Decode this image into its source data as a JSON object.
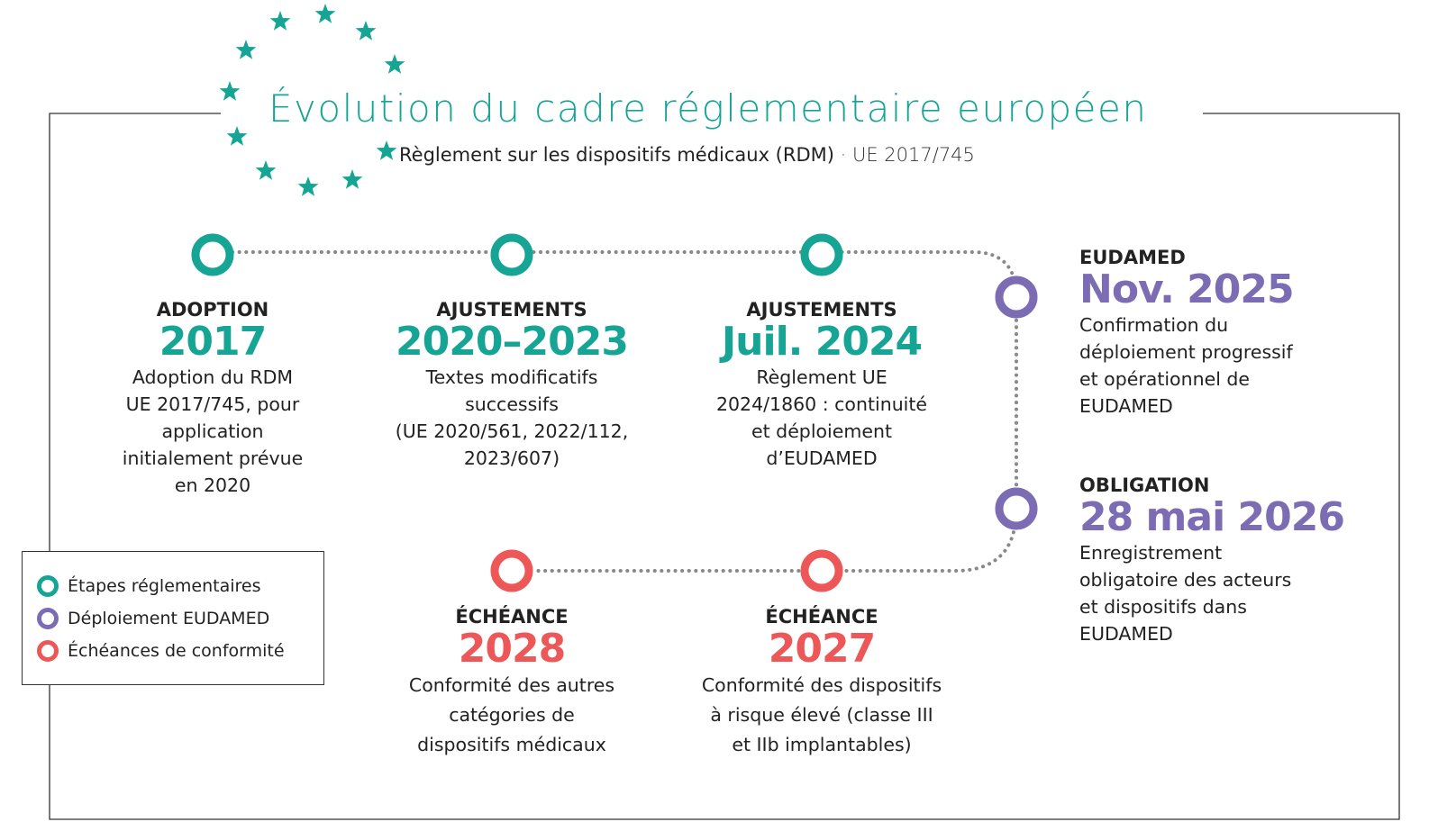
{
  "header": {
    "title": "Évolution du cadre réglementaire européen",
    "subtitle": "Règlement sur les dispositifs médicaux (RDM)",
    "subtitle_code": "· UE 2017/745"
  },
  "colors": {
    "regulatory": "#16a595",
    "eudamed": "#7b6cb4",
    "compliance": "#ee5757",
    "connector": "#888888"
  },
  "milestones": [
    {
      "label": "ADOPTION",
      "date": "2017",
      "description": [
        "Adoption du RDM",
        "UE 2017/745, pour",
        "application",
        "initialement prévue",
        "en 2020"
      ],
      "category": "regulatory"
    },
    {
      "label": "AJUSTEMENTS",
      "date": "2020–2023",
      "description": [
        "Textes modificatifs",
        "successifs",
        "(UE 2020/561, 2022/112,",
        "2023/607)"
      ],
      "category": "regulatory"
    },
    {
      "label": "AJUSTEMENTS",
      "date": "Juil. 2024",
      "description": [
        "Règlement UE",
        "2024/1860 : continuité",
        "et déploiement",
        "d’EUDAMED"
      ],
      "category": "regulatory"
    },
    {
      "label": "EUDAMED",
      "date": "Nov. 2025",
      "description": [
        "Confirmation du",
        "déploiement progressif",
        "et opérationnel de",
        "EUDAMED"
      ],
      "category": "eudamed"
    },
    {
      "label": "OBLIGATION",
      "date": "28 mai 2026",
      "description": [
        "Enregistrement",
        "obligatoire des acteurs",
        "et dispositifs dans",
        "EUDAMED"
      ],
      "category": "eudamed"
    },
    {
      "label": "ÉCHÉANCE",
      "date": "2027",
      "description": [
        "Conformité des dispositifs",
        "à risque élevé (classe III",
        "et IIb implantables)"
      ],
      "category": "compliance"
    },
    {
      "label": "ÉCHÉANCE",
      "date": "2028",
      "description": [
        "Conformité des autres",
        "catégories de",
        "dispositifs médicaux"
      ],
      "category": "compliance"
    }
  ],
  "legend": {
    "items": [
      {
        "label": "Étapes réglementaires",
        "category": "regulatory"
      },
      {
        "label": "Déploiement EUDAMED",
        "category": "eudamed"
      },
      {
        "label": "Échéances de conformité",
        "category": "compliance"
      }
    ]
  },
  "decoration": {
    "icon": "eu-stars-icon"
  }
}
